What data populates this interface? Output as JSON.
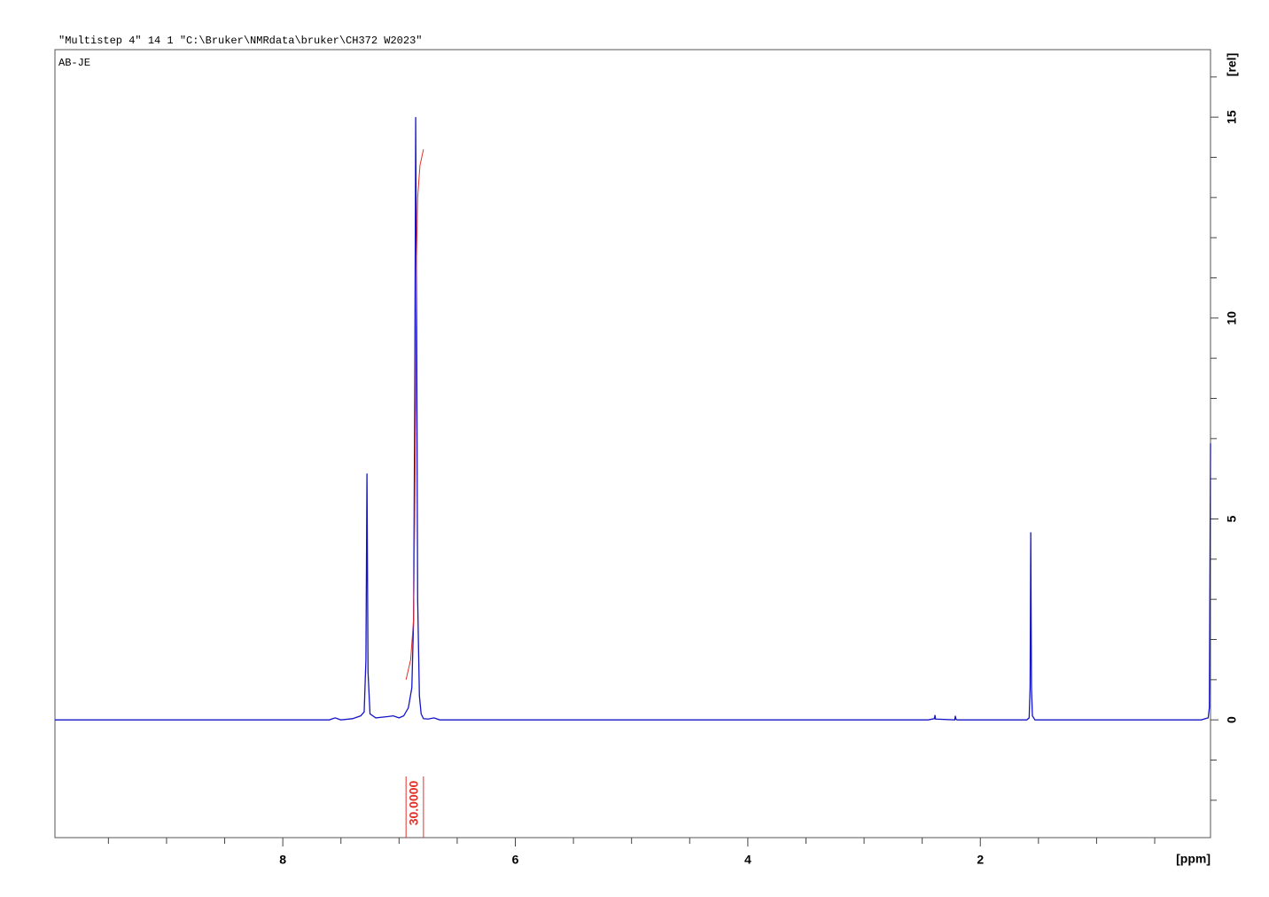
{
  "header": "\"Multistep 4\"  14  1  \"C:\\Bruker\\NMRdata\\bruker\\CH372 W2023\"",
  "chart_data": {
    "type": "line",
    "title": "AB-JE",
    "xlabel": "[ppm]",
    "ylabel": "[rel]",
    "xlim": [
      9.96,
      0.02
    ],
    "ylim": [
      -2.93,
      16.68
    ],
    "xticks": [
      8,
      6,
      4,
      2
    ],
    "xminorticks": [
      9.5,
      9,
      8.5,
      7.5,
      7,
      6.5,
      5.5,
      5,
      4.5,
      3.5,
      3,
      2.5,
      1.5,
      1,
      0.5
    ],
    "yticks": [
      0,
      5,
      10,
      15
    ],
    "yminorticks": [
      -2,
      -1,
      1,
      2,
      3,
      4,
      6,
      7,
      8,
      9,
      11,
      12,
      13,
      14,
      16
    ],
    "series": [
      {
        "color": "#1414c8",
        "x": [
          9.96,
          7.6,
          7.55,
          7.5,
          7.4,
          7.33,
          7.3,
          7.285,
          7.276,
          7.267,
          7.25,
          7.2,
          7.1,
          7.05,
          7.0,
          6.96,
          6.92,
          6.89,
          6.875,
          6.865,
          6.857,
          6.849,
          6.84,
          6.825,
          6.81,
          6.79,
          6.75,
          6.7,
          6.65,
          2.45,
          2.395,
          2.39,
          2.385,
          2.22,
          2.215,
          2.21,
          2.2,
          1.6,
          1.58,
          1.572,
          1.566,
          1.56,
          1.552,
          1.53,
          0.1,
          0.04,
          0.03,
          0.02
        ],
        "values": [
          0,
          0,
          0.05,
          0,
          0.03,
          0.1,
          0.2,
          1.5,
          6.13,
          1.2,
          0.15,
          0.05,
          0.08,
          0.1,
          0.05,
          0.1,
          0.3,
          0.8,
          2.5,
          8,
          15,
          10,
          3,
          0.6,
          0.15,
          0.03,
          0.02,
          0.05,
          0,
          0,
          0.03,
          0.12,
          0.02,
          0,
          0.1,
          0.02,
          0,
          0,
          0.05,
          0.8,
          4.67,
          0.8,
          0.1,
          0,
          0,
          0.05,
          0.3,
          6.88
        ]
      }
    ],
    "integral": {
      "color": "#e0302a",
      "from": 6.94,
      "to": 6.79,
      "value": 30,
      "value_label": "30.0000",
      "x": [
        6.94,
        6.9,
        6.875,
        6.865,
        6.857,
        6.85,
        6.84,
        6.82,
        6.79
      ],
      "values": [
        1.0,
        1.5,
        2.5,
        5,
        8,
        11.5,
        13,
        13.8,
        14.2
      ]
    }
  }
}
